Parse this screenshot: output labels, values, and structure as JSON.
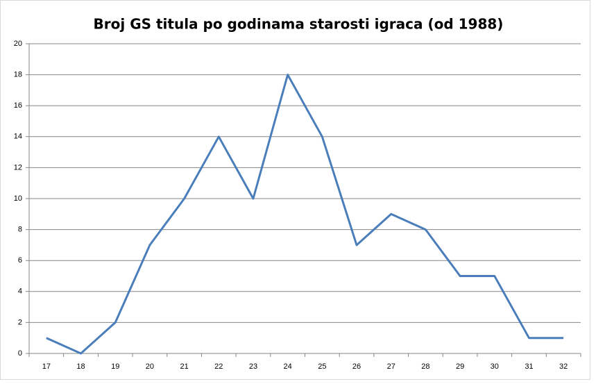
{
  "chart_data": {
    "type": "line",
    "title": "Broj GS titula po godinama starosti igraca (od 1988)",
    "categories": [
      "17",
      "18",
      "19",
      "20",
      "21",
      "22",
      "23",
      "24",
      "25",
      "26",
      "27",
      "28",
      "29",
      "30",
      "31",
      "32"
    ],
    "values": [
      1,
      0,
      2,
      7,
      10,
      14,
      10,
      18,
      14,
      7,
      9,
      8,
      5,
      5,
      1,
      1
    ],
    "color": "#4a7ebb",
    "ylim": [
      0,
      20
    ],
    "yticks": [
      0,
      2,
      4,
      6,
      8,
      10,
      12,
      14,
      16,
      18,
      20
    ],
    "grid": true
  }
}
